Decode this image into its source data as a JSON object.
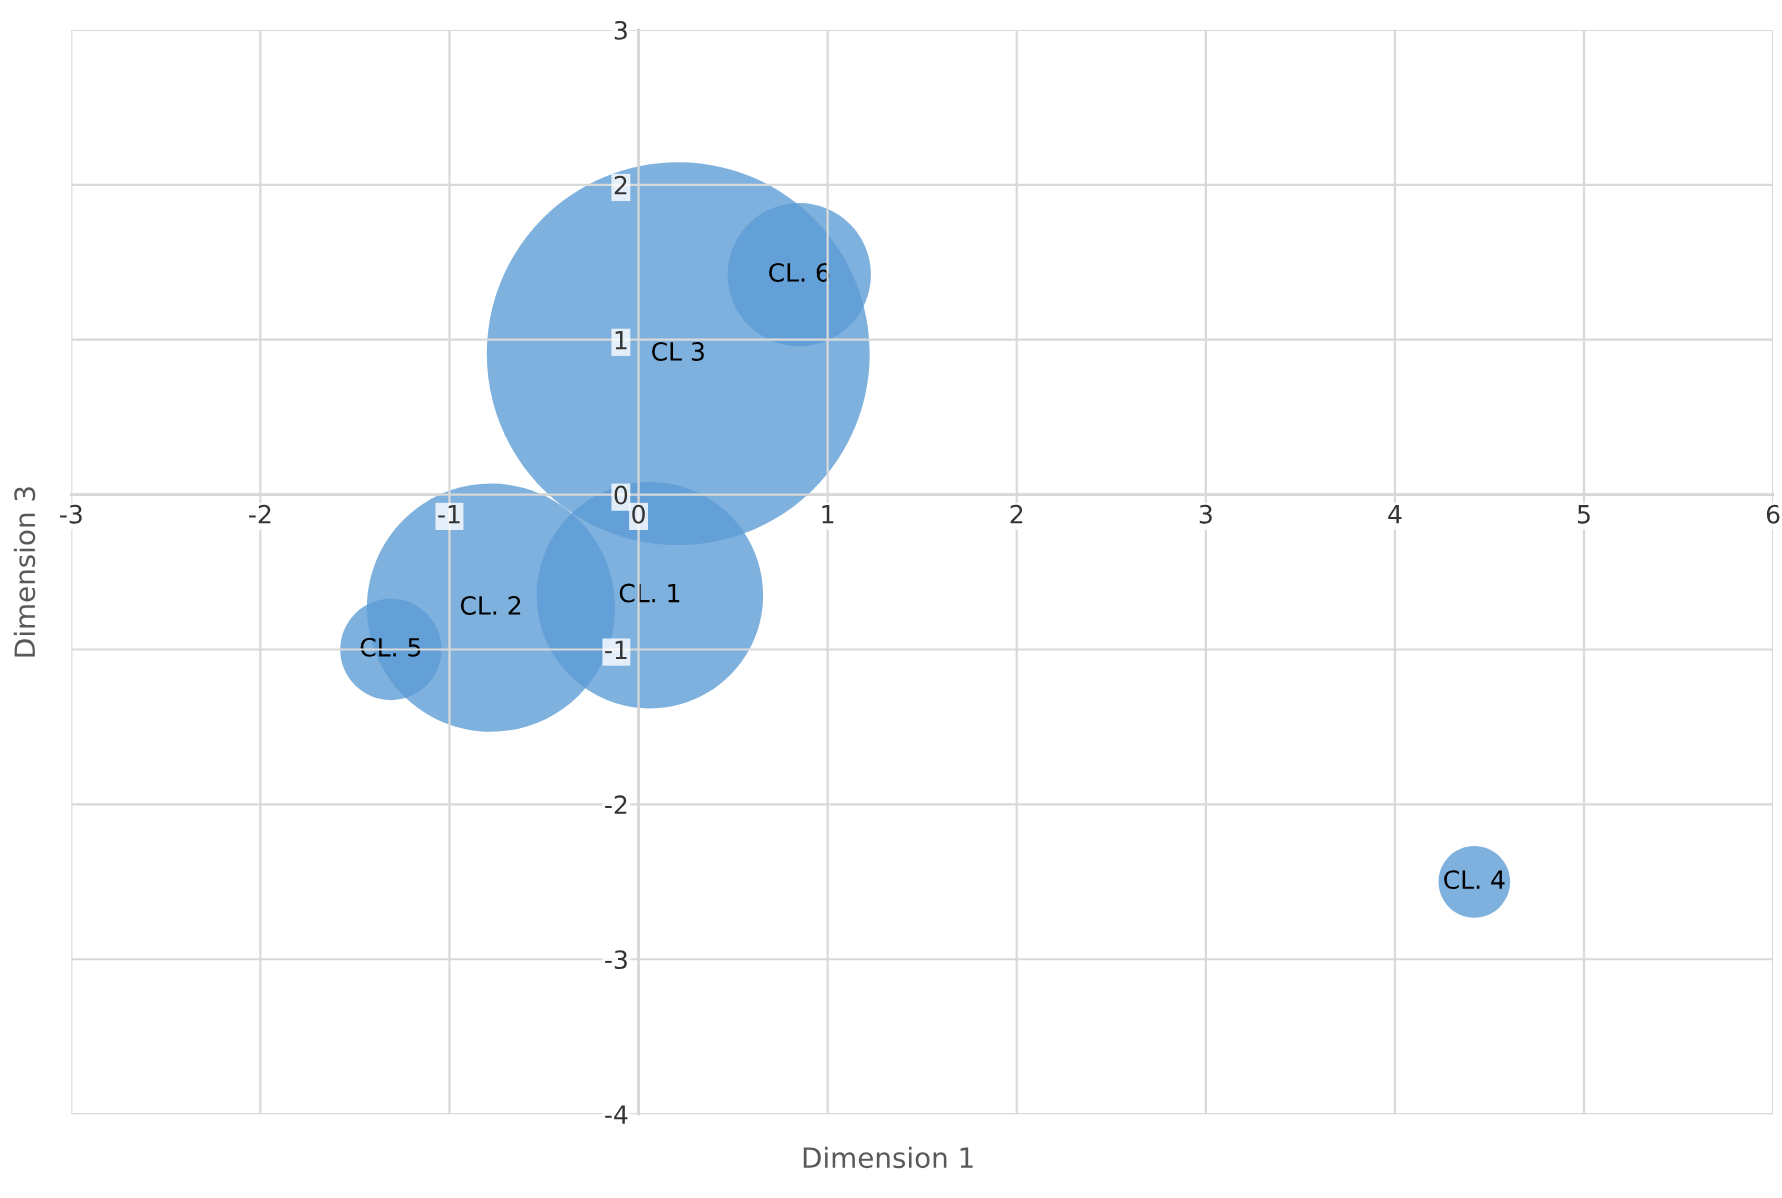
{
  "chart_data": {
    "type": "bubble",
    "xlabel": "Dimension 1",
    "ylabel": "Dimension 3",
    "series": [
      {
        "color": "#5b9bd5",
        "x": [
          0.06,
          -0.78,
          0.21,
          4.42,
          -1.31,
          0.85
        ],
        "values": [
          -0.65,
          -0.73,
          0.91,
          -2.5,
          -1.0,
          1.42
        ],
        "sizes": [
          0.35,
          0.42,
          1,
          0.035,
          0.07,
          0.14
        ]
      }
    ],
    "annotations": [
      {
        "text": "CL. 1",
        "x": 0.06,
        "y": -0.65
      },
      {
        "text": "CL. 2",
        "x": -0.78,
        "y": -0.73
      },
      {
        "text": "CL 3",
        "x": 0.21,
        "y": 0.91
      },
      {
        "text": "CL. 4",
        "x": 4.42,
        "y": -2.5
      },
      {
        "text": "CL. 5",
        "x": -1.31,
        "y": -1.0
      },
      {
        "text": "CL. 6",
        "x": 0.85,
        "y": 1.42
      }
    ],
    "xlim": [
      -3,
      6
    ],
    "xticks": [
      -3,
      -2,
      -1,
      0,
      1,
      2,
      3,
      4,
      5,
      6
    ],
    "ylim": [
      -4,
      3
    ],
    "yticks": [
      -4,
      -3,
      -2,
      -1,
      0,
      1,
      2,
      3
    ],
    "grid": true,
    "legend": false
  }
}
